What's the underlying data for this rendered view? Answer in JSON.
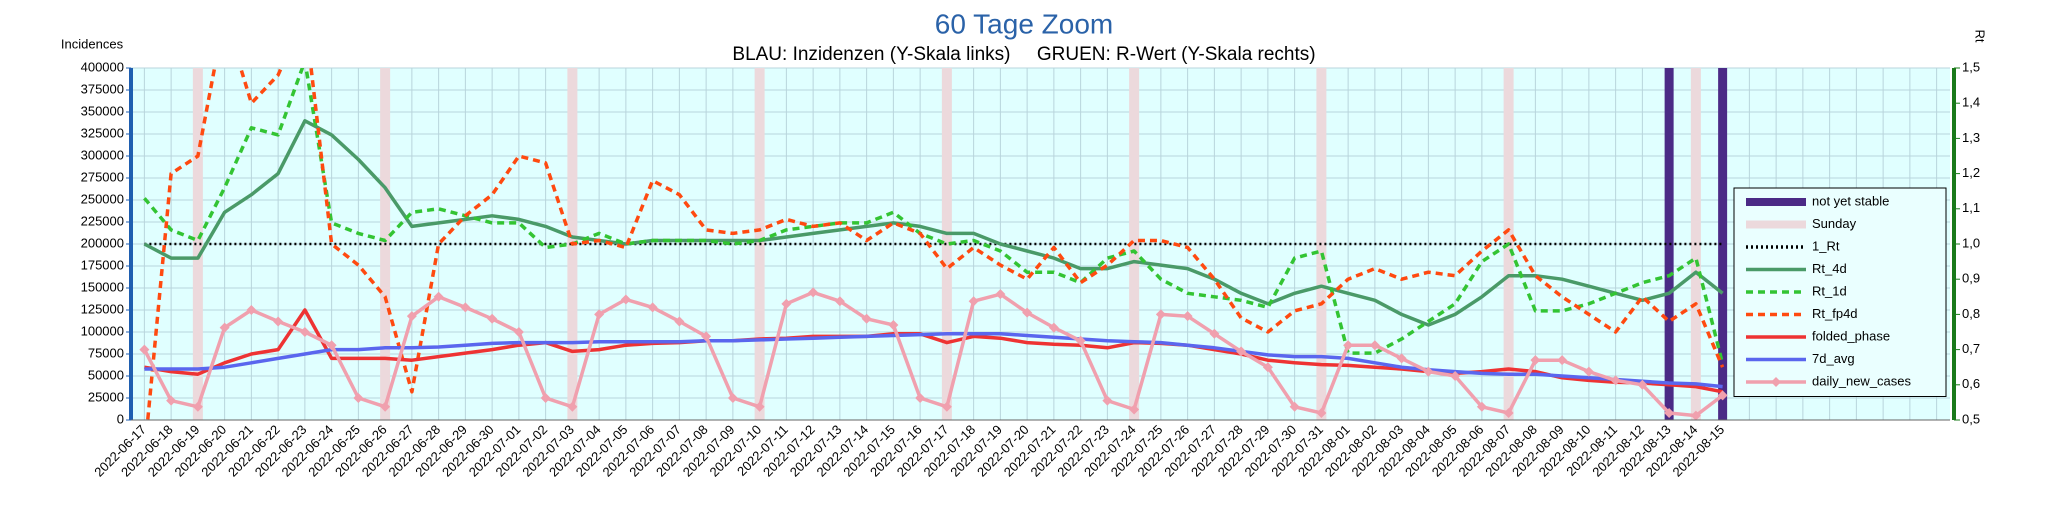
{
  "chart_data": {
    "type": "line",
    "title": "60 Tage Zoom",
    "subtitle": "BLAU: Inzidenzen (Y-Skala links)     GRUEN: R-Wert (Y-Skala rechts)",
    "y_label": "Incidences",
    "y2_label": "Rt",
    "categories": [
      "2022-06-17",
      "2022-06-18",
      "2022-06-19",
      "2022-06-20",
      "2022-06-21",
      "2022-06-22",
      "2022-06-23",
      "2022-06-24",
      "2022-06-25",
      "2022-06-26",
      "2022-06-27",
      "2022-06-28",
      "2022-06-29",
      "2022-06-30",
      "2022-07-01",
      "2022-07-02",
      "2022-07-03",
      "2022-07-04",
      "2022-07-05",
      "2022-07-06",
      "2022-07-07",
      "2022-07-08",
      "2022-07-09",
      "2022-07-10",
      "2022-07-11",
      "2022-07-12",
      "2022-07-13",
      "2022-07-14",
      "2022-07-15",
      "2022-07-16",
      "2022-07-17",
      "2022-07-18",
      "2022-07-19",
      "2022-07-20",
      "2022-07-21",
      "2022-07-22",
      "2022-07-23",
      "2022-07-24",
      "2022-07-25",
      "2022-07-26",
      "2022-07-27",
      "2022-07-28",
      "2022-07-29",
      "2022-07-30",
      "2022-07-31",
      "2022-08-01",
      "2022-08-02",
      "2022-08-03",
      "2022-08-04",
      "2022-08-05",
      "2022-08-06",
      "2022-08-07",
      "2022-08-08",
      "2022-08-09",
      "2022-08-10",
      "2022-08-11",
      "2022-08-12",
      "2022-08-13",
      "2022-08-14",
      "2022-08-15",
      null,
      null,
      null,
      null,
      null,
      null,
      null,
      null
    ],
    "ylim": [
      0,
      400000
    ],
    "yticks": [
      0,
      25000,
      50000,
      75000,
      100000,
      125000,
      150000,
      175000,
      200000,
      225000,
      250000,
      275000,
      300000,
      325000,
      350000,
      375000,
      400000
    ],
    "y2lim": [
      0.5,
      1.5
    ],
    "y2ticks": [
      {
        "value": 0.5,
        "label": "0,5"
      },
      {
        "value": 0.6,
        "label": "0,6"
      },
      {
        "value": 0.7,
        "label": "0,7"
      },
      {
        "value": 0.8,
        "label": "0,8"
      },
      {
        "value": 0.9,
        "label": "0,9"
      },
      {
        "value": 1.0,
        "label": "1,0"
      },
      {
        "value": 1.1,
        "label": "1,1"
      },
      {
        "value": 1.2,
        "label": "1,2"
      },
      {
        "value": 1.3,
        "label": "1,3"
      },
      {
        "value": 1.4,
        "label": "1,4"
      },
      {
        "value": 1.5,
        "label": "1,5"
      }
    ],
    "grid": true,
    "legend": "right",
    "series": [
      {
        "name": "not yet stable",
        "color": "#4b2a86",
        "kind": "bar",
        "values": [
          null,
          null,
          null,
          null,
          null,
          null,
          null,
          null,
          null,
          null,
          null,
          null,
          null,
          null,
          null,
          null,
          null,
          null,
          null,
          null,
          null,
          null,
          null,
          null,
          null,
          null,
          null,
          null,
          null,
          null,
          null,
          null,
          null,
          null,
          null,
          null,
          null,
          null,
          null,
          null,
          null,
          null,
          null,
          null,
          null,
          null,
          null,
          null,
          null,
          null,
          null,
          null,
          null,
          null,
          null,
          null,
          null,
          400000,
          400000,
          400000,
          null,
          null,
          null,
          null,
          null,
          null,
          null,
          null
        ]
      },
      {
        "name": "Sunday",
        "color": "#ecd9dc",
        "kind": "bar",
        "values": [
          null,
          null,
          400000,
          null,
          null,
          null,
          null,
          null,
          null,
          400000,
          null,
          null,
          null,
          null,
          null,
          null,
          400000,
          null,
          null,
          null,
          null,
          null,
          null,
          400000,
          null,
          null,
          null,
          null,
          null,
          null,
          400000,
          null,
          null,
          null,
          null,
          null,
          null,
          400000,
          null,
          null,
          null,
          null,
          null,
          null,
          400000,
          null,
          null,
          null,
          null,
          null,
          null,
          400000,
          null,
          null,
          null,
          null,
          null,
          null,
          400000,
          null,
          null,
          null,
          null,
          null,
          null,
          null,
          null,
          null
        ]
      },
      {
        "name": "1_Rt",
        "color": "#000000",
        "dash": "dotted",
        "axis": "y2",
        "values": [
          1,
          1,
          1,
          1,
          1,
          1,
          1,
          1,
          1,
          1,
          1,
          1,
          1,
          1,
          1,
          1,
          1,
          1,
          1,
          1,
          1,
          1,
          1,
          1,
          1,
          1,
          1,
          1,
          1,
          1,
          1,
          1,
          1,
          1,
          1,
          1,
          1,
          1,
          1,
          1,
          1,
          1,
          1,
          1,
          1,
          1,
          1,
          1,
          1,
          1,
          1,
          1,
          1,
          1,
          1,
          1,
          1,
          1,
          1,
          1,
          null,
          null,
          null,
          null,
          null,
          null,
          null,
          null
        ]
      },
      {
        "name": "Rt_4d",
        "color": "#4a9a68",
        "axis": "y2",
        "values": [
          1.0,
          0.96,
          0.96,
          1.09,
          1.14,
          1.2,
          1.35,
          1.31,
          1.24,
          1.16,
          1.05,
          1.06,
          1.07,
          1.08,
          1.07,
          1.05,
          1.02,
          1.01,
          1.0,
          1.01,
          1.01,
          1.01,
          1.01,
          1.01,
          1.02,
          1.03,
          1.04,
          1.05,
          1.06,
          1.05,
          1.03,
          1.03,
          1.0,
          0.98,
          0.96,
          0.93,
          0.93,
          0.95,
          0.94,
          0.93,
          0.9,
          0.86,
          0.83,
          0.86,
          0.88,
          0.86,
          0.84,
          0.8,
          0.77,
          0.8,
          0.85,
          0.91,
          0.91,
          0.9,
          0.88,
          0.86,
          0.84,
          0.86,
          0.92,
          0.86,
          null,
          null,
          null,
          null,
          null,
          null,
          null,
          null
        ]
      },
      {
        "name": "Rt_1d",
        "color": "#33c433",
        "dash": "dashed",
        "axis": "y2",
        "values": [
          1.13,
          1.04,
          1.01,
          1.16,
          1.33,
          1.31,
          1.52,
          1.06,
          1.03,
          1.01,
          1.09,
          1.1,
          1.08,
          1.06,
          1.06,
          0.99,
          1.0,
          1.03,
          1.0,
          1.01,
          1.01,
          1.01,
          1.0,
          1.01,
          1.04,
          1.05,
          1.06,
          1.06,
          1.09,
          1.03,
          1.0,
          1.01,
          0.98,
          0.92,
          0.92,
          0.89,
          0.96,
          0.98,
          0.9,
          0.86,
          0.85,
          0.84,
          0.82,
          0.96,
          0.98,
          0.69,
          0.69,
          0.73,
          0.78,
          0.83,
          0.95,
          1.0,
          0.81,
          0.81,
          0.83,
          0.86,
          0.89,
          0.91,
          0.96,
          0.66,
          null,
          null,
          null,
          null,
          null,
          null,
          null,
          null
        ]
      },
      {
        "name": "Rt_fp4d",
        "color": "#ff4a10",
        "dash": "dashed",
        "axis": "y2",
        "values": [
          0.4,
          1.2,
          1.25,
          1.65,
          1.4,
          1.48,
          1.65,
          1.0,
          0.94,
          0.85,
          0.58,
          1.0,
          1.08,
          1.14,
          1.25,
          1.23,
          1.0,
          1.01,
          0.99,
          1.18,
          1.14,
          1.04,
          1.03,
          1.04,
          1.07,
          1.05,
          1.06,
          1.01,
          1.06,
          1.03,
          0.93,
          0.99,
          0.94,
          0.9,
          0.99,
          0.89,
          0.94,
          1.01,
          1.01,
          0.99,
          0.9,
          0.79,
          0.75,
          0.81,
          0.83,
          0.9,
          0.93,
          0.9,
          0.92,
          0.91,
          0.98,
          1.04,
          0.91,
          0.85,
          0.8,
          0.75,
          0.85,
          0.78,
          0.83,
          0.65,
          null,
          null,
          null,
          null,
          null,
          null,
          null,
          null
        ]
      },
      {
        "name": "folded_phase",
        "color": "#ee3333",
        "values": [
          60000,
          55000,
          52000,
          65000,
          75000,
          80000,
          125000,
          70000,
          70000,
          70000,
          68000,
          72000,
          76000,
          80000,
          85000,
          88000,
          78000,
          80000,
          85000,
          87000,
          88000,
          90000,
          90000,
          92000,
          93000,
          95000,
          95000,
          95000,
          98000,
          98000,
          88000,
          95000,
          93000,
          88000,
          86000,
          85000,
          82000,
          88000,
          87000,
          85000,
          80000,
          75000,
          68000,
          65000,
          63000,
          62000,
          60000,
          58000,
          55000,
          53000,
          55000,
          58000,
          55000,
          48000,
          45000,
          43000,
          42000,
          40000,
          38000,
          32000,
          null,
          null,
          null,
          null,
          null,
          null,
          null,
          null
        ]
      },
      {
        "name": "7d_avg",
        "color": "#5a66ee",
        "values": [
          58000,
          58000,
          58000,
          60000,
          65000,
          70000,
          75000,
          80000,
          80000,
          82000,
          82000,
          83000,
          85000,
          87000,
          88000,
          88000,
          88000,
          89000,
          89000,
          89000,
          89000,
          90000,
          90000,
          91000,
          92000,
          93000,
          94000,
          95000,
          96000,
          97000,
          98000,
          98000,
          98000,
          96000,
          94000,
          92000,
          90000,
          89000,
          88000,
          85000,
          82000,
          78000,
          74000,
          72000,
          72000,
          70000,
          65000,
          60000,
          57000,
          55000,
          53000,
          52000,
          52000,
          50000,
          48000,
          46000,
          44000,
          42000,
          41000,
          38000,
          null,
          null,
          null,
          null,
          null,
          null,
          null,
          null
        ]
      },
      {
        "name": "daily_new_cases",
        "color": "#f0a0ae",
        "marker": "diamond",
        "values": [
          80000,
          22000,
          15000,
          105000,
          125000,
          112000,
          100000,
          85000,
          25000,
          15000,
          118000,
          140000,
          128000,
          115000,
          100000,
          25000,
          15000,
          120000,
          137000,
          128000,
          112000,
          95000,
          25000,
          15000,
          132000,
          145000,
          135000,
          115000,
          108000,
          25000,
          15000,
          135000,
          143000,
          122000,
          105000,
          90000,
          22000,
          12000,
          120000,
          118000,
          98000,
          78000,
          60000,
          15000,
          8000,
          85000,
          85000,
          70000,
          55000,
          50000,
          15000,
          8000,
          68000,
          68000,
          55000,
          45000,
          40000,
          8000,
          5000,
          28000,
          null,
          null,
          null,
          null,
          null,
          null,
          null,
          null
        ]
      }
    ]
  }
}
